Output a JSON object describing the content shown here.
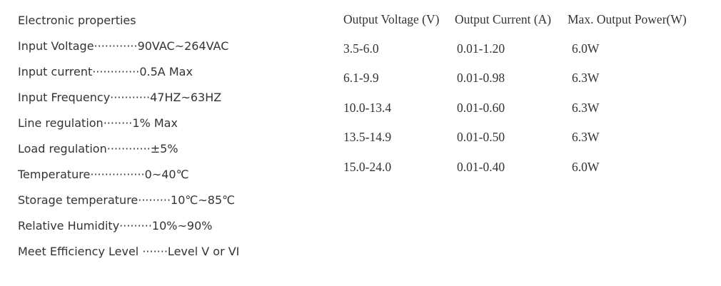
{
  "properties": {
    "heading": "Electronic properties",
    "lines": [
      "Input Voltage············90VAC~264VAC",
      "Input current·············0.5A Max",
      "Input Frequency···········47HZ~63HZ",
      "Line regulation········1% Max",
      "Load regulation············±5%",
      "Temperature···············0~40℃",
      "Storage temperature·········10℃~85℃",
      "Relative Humidity·········10%~90%",
      "Meet Efficiency Level ·······Level V or VI"
    ]
  },
  "table": {
    "header": [
      "Output Voltage (V)",
      "Output Current (A)",
      "Max. Output Power(W)"
    ],
    "rows": [
      [
        "3.5-6.0",
        "0.01-1.20",
        "6.0W"
      ],
      [
        "6.1-9.9",
        "0.01-0.98",
        "6.3W"
      ],
      [
        "10.0-13.4",
        "0.01-0.60",
        "6.3W"
      ],
      [
        "13.5-14.9",
        "0.01-0.50",
        "6.3W"
      ],
      [
        "15.0-24.0",
        "0.01-0.40",
        "6.0W"
      ]
    ]
  }
}
